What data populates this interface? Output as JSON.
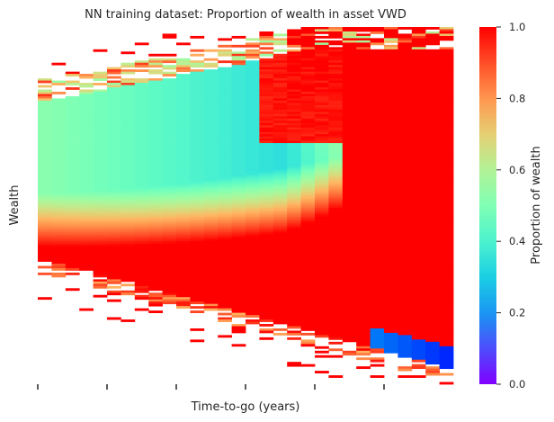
{
  "chart_data": {
    "type": "heatmap",
    "title": "NN training dataset: Proportion of wealth in asset VWD",
    "xlabel": "Time-to-go (years)",
    "ylabel": "Wealth",
    "colorbar": {
      "label": "Proportion of wealth",
      "range": [
        0.0,
        1.0
      ],
      "ticks": [
        "0.0",
        "0.2",
        "0.4",
        "0.6",
        "0.8",
        "1.0"
      ],
      "colormap": "rainbow"
    },
    "x_ticks_shown": 6,
    "x_tick_labels_visible": false,
    "y_tick_labels_visible": false,
    "grid": false
  }
}
